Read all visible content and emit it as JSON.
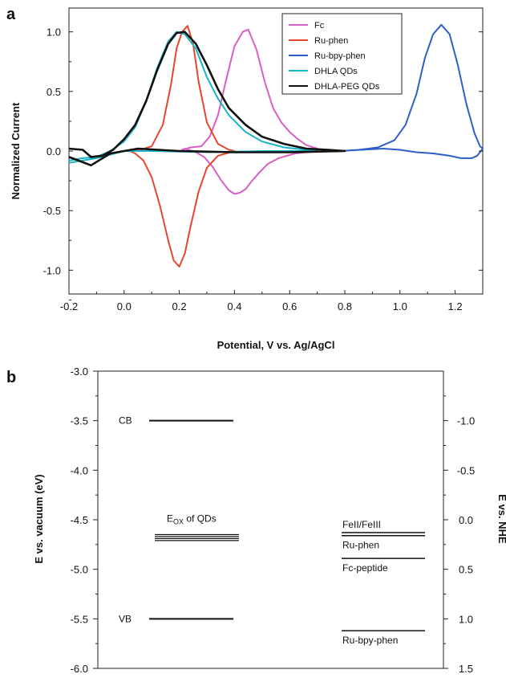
{
  "panel_a": {
    "label": "a"
  },
  "panel_b": {
    "label": "b"
  },
  "chart_data": [
    {
      "type": "line",
      "xlabel": "Potential, V vs. Ag/AgCl",
      "ylabel": "Normalized Current",
      "xlim": [
        -0.2,
        1.3
      ],
      "ylim": [
        -1.2,
        1.2
      ],
      "xticks": [
        "-0.2",
        "0.0",
        "0.2",
        "0.4",
        "0.6",
        "0.8",
        "1.0",
        "1.2"
      ],
      "yticks": [
        "-1.0",
        "-0.5",
        "0.0",
        "0.5",
        "1.0"
      ],
      "legend_position": "top-right",
      "series": [
        {
          "name": "Fc",
          "color": "#d660c4",
          "x": [
            0.2,
            0.24,
            0.28,
            0.31,
            0.34,
            0.37,
            0.4,
            0.43,
            0.45,
            0.48,
            0.51,
            0.54,
            0.57,
            0.6,
            0.63,
            0.66,
            0.7
          ],
          "y": [
            0.0,
            0.03,
            0.04,
            0.12,
            0.3,
            0.6,
            0.88,
            1.0,
            1.02,
            0.85,
            0.58,
            0.36,
            0.24,
            0.16,
            0.1,
            0.05,
            0.02
          ],
          "x_rev": [
            0.7,
            0.62,
            0.56,
            0.52,
            0.49,
            0.46,
            0.44,
            0.42,
            0.4,
            0.38,
            0.35,
            0.32,
            0.29,
            0.26,
            0.22,
            0.2
          ],
          "y_rev": [
            0.0,
            -0.02,
            -0.06,
            -0.11,
            -0.18,
            -0.26,
            -0.32,
            -0.35,
            -0.36,
            -0.33,
            -0.24,
            -0.13,
            -0.05,
            -0.01,
            0.02,
            0.0
          ]
        },
        {
          "name": "Ru-phen",
          "color": "#e8452f",
          "x": [
            0.0,
            0.06,
            0.1,
            0.14,
            0.17,
            0.19,
            0.21,
            0.23,
            0.25,
            0.27,
            0.3,
            0.34,
            0.38,
            0.4
          ],
          "y": [
            0.0,
            0.01,
            0.04,
            0.22,
            0.56,
            0.86,
            1.0,
            1.05,
            0.9,
            0.58,
            0.24,
            0.06,
            0.01,
            0.0
          ],
          "x_rev": [
            0.4,
            0.34,
            0.3,
            0.27,
            0.24,
            0.22,
            0.2,
            0.18,
            0.16,
            0.13,
            0.1,
            0.07,
            0.04,
            0.02,
            0.0
          ],
          "y_rev": [
            0.0,
            -0.04,
            -0.14,
            -0.34,
            -0.64,
            -0.86,
            -0.97,
            -0.92,
            -0.75,
            -0.46,
            -0.22,
            -0.08,
            -0.02,
            0.0,
            0.0
          ]
        },
        {
          "name": "Ru-bpy-phen",
          "color": "#2d5fc9",
          "x": [
            0.78,
            0.85,
            0.92,
            0.98,
            1.02,
            1.06,
            1.09,
            1.12,
            1.15,
            1.18,
            1.21,
            1.24,
            1.27,
            1.29,
            1.3
          ],
          "y": [
            0.0,
            0.01,
            0.03,
            0.09,
            0.22,
            0.48,
            0.78,
            0.98,
            1.06,
            0.98,
            0.72,
            0.4,
            0.15,
            0.04,
            0.02
          ],
          "x_rev": [
            1.3,
            1.28,
            1.26,
            1.22,
            1.18,
            1.12,
            1.06,
            1.0,
            0.94,
            0.86,
            0.78
          ],
          "y_rev": [
            0.02,
            -0.04,
            -0.06,
            -0.06,
            -0.04,
            -0.02,
            -0.01,
            0.01,
            0.02,
            0.01,
            0.0
          ]
        },
        {
          "name": "DHLA QDs",
          "color": "#1ab3c8",
          "x": [
            -0.2,
            -0.15,
            -0.1,
            -0.05,
            0.0,
            0.04,
            0.08,
            0.12,
            0.16,
            0.19,
            0.22,
            0.26,
            0.3,
            0.34,
            0.38,
            0.44,
            0.5,
            0.58,
            0.66,
            0.7
          ],
          "y": [
            -0.08,
            -0.06,
            -0.05,
            0.0,
            0.08,
            0.2,
            0.42,
            0.7,
            0.92,
            1.0,
            0.98,
            0.86,
            0.62,
            0.44,
            0.3,
            0.16,
            0.08,
            0.03,
            0.01,
            0.0
          ],
          "x_rev": [
            0.7,
            0.5,
            0.3,
            0.1,
            0.0,
            -0.1,
            -0.2
          ],
          "y_rev": [
            0.0,
            0.0,
            -0.01,
            0.0,
            0.0,
            -0.06,
            -0.1
          ]
        },
        {
          "name": "DHLA-PEG QDs",
          "color": "#111111",
          "x": [
            -0.2,
            -0.15,
            -0.12,
            -0.08,
            -0.04,
            0.0,
            0.04,
            0.08,
            0.12,
            0.16,
            0.19,
            0.22,
            0.26,
            0.3,
            0.34,
            0.38,
            0.44,
            0.5,
            0.58,
            0.66,
            0.74,
            0.8
          ],
          "y": [
            0.02,
            0.01,
            -0.05,
            -0.04,
            0.01,
            0.1,
            0.22,
            0.42,
            0.68,
            0.9,
            0.99,
            1.0,
            0.9,
            0.72,
            0.52,
            0.36,
            0.22,
            0.12,
            0.06,
            0.02,
            0.01,
            0.0
          ],
          "x_rev": [
            0.8,
            0.6,
            0.4,
            0.2,
            0.05,
            -0.05,
            -0.12,
            -0.2
          ],
          "y_rev": [
            0.0,
            -0.01,
            -0.01,
            0.0,
            0.02,
            -0.02,
            -0.12,
            -0.05
          ]
        }
      ]
    },
    {
      "type": "energy-level",
      "ylabel": "E vs. vacuum (eV)",
      "ylabel_right": "E vs. NHE",
      "ylim": [
        -6.0,
        -3.0
      ],
      "yticks": [
        "-3.0",
        "-3.5",
        "-4.0",
        "-4.5",
        "-5.0",
        "-5.5",
        "-6.0"
      ],
      "right_ticks": [
        {
          "label": "-1.0",
          "vac": -3.5
        },
        {
          "label": "-0.5",
          "vac": -4.0
        },
        {
          "label": "0.0",
          "vac": -4.5
        },
        {
          "label": "0.5",
          "vac": -5.0
        },
        {
          "label": "1.0",
          "vac": -5.5
        },
        {
          "label": "1.5",
          "vac": -6.0
        }
      ],
      "levels_left": [
        {
          "name": "CB",
          "energy": -3.5
        },
        {
          "name": "VB",
          "energy": -5.5
        }
      ],
      "eox_label_main": "E",
      "eox_label_sub": "OX",
      "eox_label_rest": " of QDs",
      "eox_levels": [
        -4.65,
        -4.67,
        -4.69,
        -4.71
      ],
      "levels_right": [
        {
          "name": "FeII/FeIII",
          "energy": -4.63
        },
        {
          "name": "Ru-phen",
          "energy": -4.66
        },
        {
          "name": "Fc-peptide",
          "energy": -4.89
        },
        {
          "name": "Ru-bpy-phen",
          "energy": -5.62
        }
      ]
    }
  ]
}
